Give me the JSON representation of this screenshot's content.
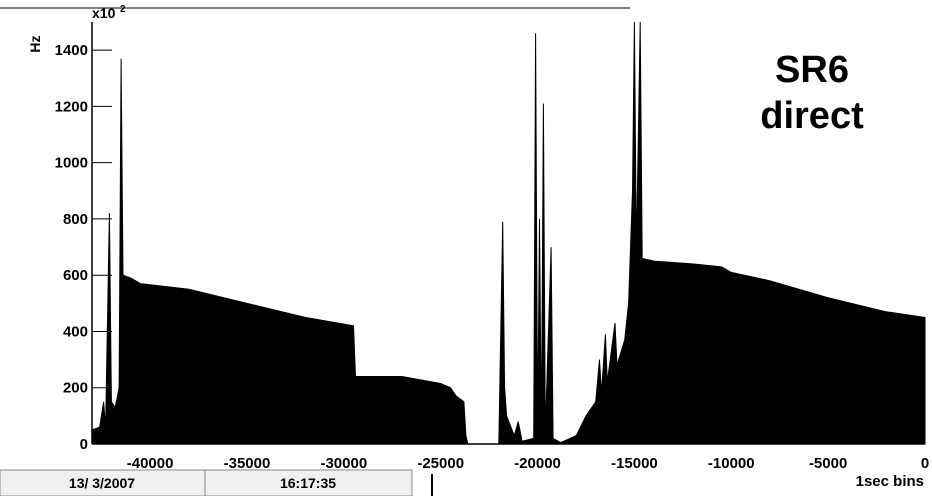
{
  "chart_data": {
    "type": "area",
    "title": "SR6\ndirect",
    "x_label": "1sec bins",
    "y_label": "Hz",
    "y_multiplier": {
      "base": "x10",
      "power": "2"
    },
    "color": "#000000",
    "xlim": [
      -43000,
      0
    ],
    "xticks": [
      -40000,
      -35000,
      -30000,
      -25000,
      -20000,
      -15000,
      -10000,
      -5000,
      0
    ],
    "ylim": [
      0,
      1500
    ],
    "yticks": [
      0,
      200,
      400,
      600,
      800,
      1000,
      1200,
      1400
    ],
    "x": [
      -43000,
      -42600,
      -42400,
      -42300,
      -42100,
      -42000,
      -41800,
      -41600,
      -41500,
      -41400,
      -41000,
      -40500,
      -38000,
      -35000,
      -32000,
      -29500,
      -29400,
      -27000,
      -25000,
      -24500,
      -24200,
      -23800,
      -23700,
      -23600,
      -22000,
      -21800,
      -21700,
      -21600,
      -21200,
      -21000,
      -20800,
      -20200,
      -20100,
      -20000,
      -19900,
      -19800,
      -19700,
      -19600,
      -19300,
      -19200,
      -18800,
      -18000,
      -17500,
      -17000,
      -16800,
      -16700,
      -16500,
      -16400,
      -16000,
      -15900,
      -15500,
      -15300,
      -15100,
      -15000,
      -14900,
      -14700,
      -14600,
      -14000,
      -12000,
      -10500,
      -10000,
      -8000,
      -5000,
      -2000,
      0
    ],
    "values": [
      50,
      60,
      150,
      60,
      820,
      150,
      130,
      200,
      1370,
      600,
      590,
      570,
      550,
      500,
      450,
      420,
      240,
      240,
      215,
      200,
      170,
      150,
      30,
      0,
      0,
      790,
      200,
      100,
      30,
      80,
      10,
      20,
      1460,
      30,
      800,
      20,
      1210,
      40,
      700,
      20,
      5,
      30,
      100,
      150,
      300,
      180,
      390,
      220,
      430,
      280,
      370,
      500,
      900,
      1500,
      680,
      1500,
      660,
      650,
      640,
      630,
      610,
      580,
      520,
      470,
      450
    ],
    "footer": {
      "date": "13/ 3/2007",
      "time": "16:17:35"
    }
  }
}
